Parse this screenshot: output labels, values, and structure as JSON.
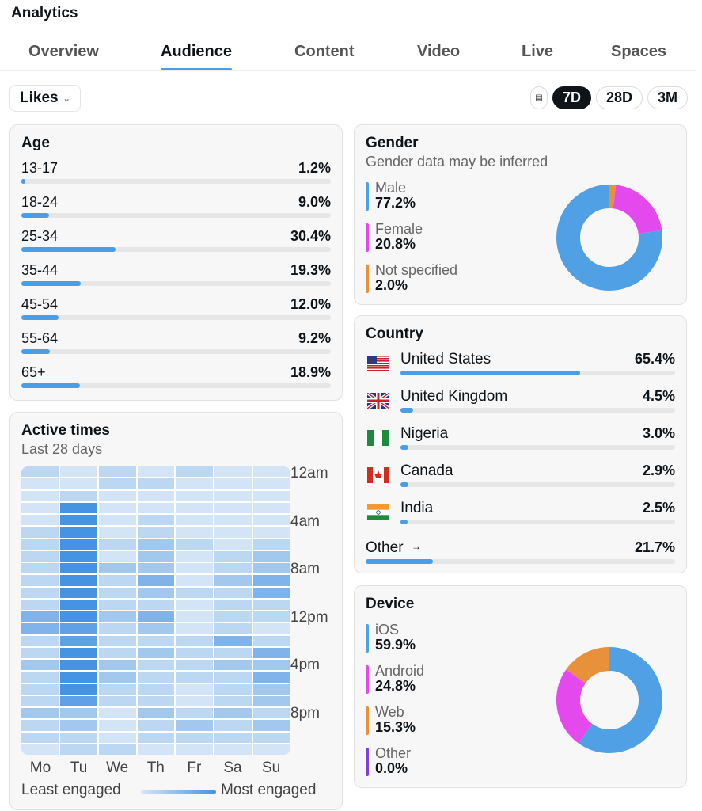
{
  "header": {
    "title": "Analytics"
  },
  "tabs": [
    "Overview",
    "Audience",
    "Content",
    "Video",
    "Live",
    "Spaces"
  ],
  "active_tab": "Audience",
  "metric_select": {
    "value": "Likes"
  },
  "ranges": [
    "7D",
    "28D",
    "3M"
  ],
  "active_range": "7D",
  "age": {
    "title": "Age",
    "rows": [
      {
        "label": "13-17",
        "value": "1.2%",
        "pct": 1.2
      },
      {
        "label": "18-24",
        "value": "9.0%",
        "pct": 9.0
      },
      {
        "label": "25-34",
        "value": "30.4%",
        "pct": 30.4
      },
      {
        "label": "35-44",
        "value": "19.3%",
        "pct": 19.3
      },
      {
        "label": "45-54",
        "value": "12.0%",
        "pct": 12.0
      },
      {
        "label": "55-64",
        "value": "9.2%",
        "pct": 9.2
      },
      {
        "label": "65+",
        "value": "18.9%",
        "pct": 18.9
      }
    ]
  },
  "gender": {
    "title": "Gender",
    "subtitle": "Gender data may be inferred",
    "items": [
      {
        "label": "Male",
        "value": "77.2%",
        "pct": 77.2,
        "color": "#4fa0e4"
      },
      {
        "label": "Female",
        "value": "20.8%",
        "pct": 20.8,
        "color": "#e349ec"
      },
      {
        "label": "Not specified",
        "value": "2.0%",
        "pct": 2.0,
        "color": "#e8913a"
      }
    ]
  },
  "country": {
    "title": "Country",
    "rows": [
      {
        "label": "United States",
        "value": "65.4%",
        "pct": 65.4,
        "flag": "us-flag-icon"
      },
      {
        "label": "United Kingdom",
        "value": "4.5%",
        "pct": 4.5,
        "flag": "uk-flag-icon"
      },
      {
        "label": "Nigeria",
        "value": "3.0%",
        "pct": 3.0,
        "flag": "nigeria-flag-icon"
      },
      {
        "label": "Canada",
        "value": "2.9%",
        "pct": 2.9,
        "flag": "canada-flag-icon"
      },
      {
        "label": "India",
        "value": "2.5%",
        "pct": 2.5,
        "flag": "india-flag-icon"
      }
    ],
    "other": {
      "label": "Other",
      "arrow": "→",
      "value": "21.7%",
      "pct": 21.7
    }
  },
  "active_times": {
    "title": "Active times",
    "subtitle": "Last 28 days",
    "hour_labels": [
      "12am",
      "4am",
      "8am",
      "12pm",
      "4pm",
      "8pm"
    ],
    "days": [
      "Mo",
      "Tu",
      "We",
      "Th",
      "Fr",
      "Sa",
      "Su"
    ],
    "legend_low": "Least engaged",
    "legend_high": "Most engaged",
    "levels": [
      [
        2,
        1,
        2,
        1,
        2,
        1,
        1
      ],
      [
        1,
        1,
        2,
        2,
        1,
        1,
        1
      ],
      [
        1,
        2,
        1,
        1,
        1,
        1,
        1
      ],
      [
        1,
        6,
        1,
        1,
        1,
        1,
        1
      ],
      [
        1,
        6,
        1,
        2,
        1,
        1,
        1
      ],
      [
        2,
        6,
        1,
        2,
        1,
        1,
        1
      ],
      [
        2,
        6,
        2,
        3,
        2,
        1,
        2
      ],
      [
        2,
        6,
        1,
        3,
        1,
        2,
        3
      ],
      [
        2,
        6,
        3,
        3,
        1,
        2,
        3
      ],
      [
        2,
        6,
        2,
        4,
        1,
        3,
        4
      ],
      [
        2,
        6,
        2,
        3,
        2,
        2,
        4
      ],
      [
        2,
        6,
        2,
        2,
        1,
        2,
        2
      ],
      [
        4,
        6,
        3,
        4,
        1,
        2,
        2
      ],
      [
        4,
        5,
        2,
        3,
        1,
        2,
        1
      ],
      [
        2,
        5,
        2,
        2,
        2,
        4,
        2
      ],
      [
        2,
        6,
        2,
        3,
        2,
        2,
        4
      ],
      [
        3,
        6,
        3,
        2,
        2,
        3,
        3
      ],
      [
        2,
        6,
        3,
        2,
        2,
        2,
        4
      ],
      [
        2,
        6,
        2,
        2,
        1,
        2,
        3
      ],
      [
        2,
        5,
        2,
        2,
        1,
        2,
        3
      ],
      [
        3,
        3,
        1,
        3,
        2,
        3,
        2
      ],
      [
        2,
        3,
        1,
        2,
        3,
        2,
        3
      ],
      [
        2,
        2,
        1,
        2,
        2,
        2,
        2
      ],
      [
        1,
        2,
        2,
        1,
        1,
        1,
        1
      ]
    ],
    "palette": [
      "#d6e6f7",
      "#d3e4f6",
      "#bcd7f2",
      "#a3c8ee",
      "#7fb3ea",
      "#5fa0e6",
      "#4593e3"
    ]
  },
  "device": {
    "title": "Device",
    "items": [
      {
        "label": "iOS",
        "value": "59.9%",
        "pct": 59.9,
        "color": "#4fa0e4"
      },
      {
        "label": "Android",
        "value": "24.8%",
        "pct": 24.8,
        "color": "#e349ec"
      },
      {
        "label": "Web",
        "value": "15.3%",
        "pct": 15.3,
        "color": "#e8913a"
      },
      {
        "label": "Other",
        "value": "0.0%",
        "pct": 0.0,
        "color": "#7b3fe4"
      }
    ]
  }
}
